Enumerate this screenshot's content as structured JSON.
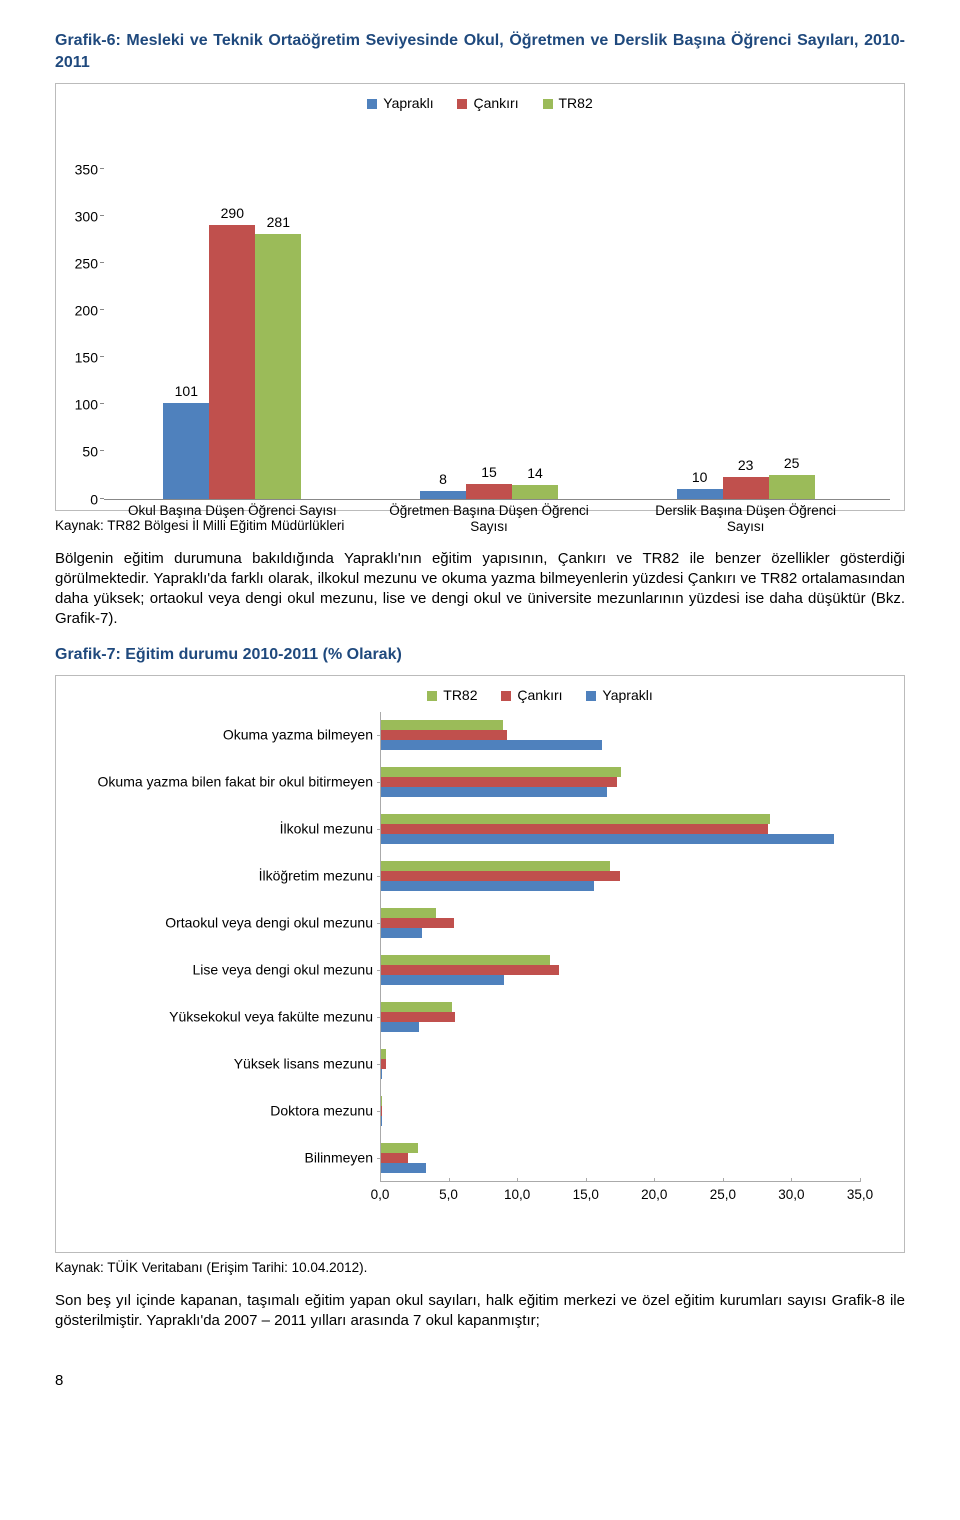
{
  "colors": {
    "blue": "#4f81bd",
    "red": "#c0504d",
    "green": "#9bbb59",
    "title": "#1f497d"
  },
  "chart6": {
    "title": "Grafik-6: Mesleki ve Teknik Ortaöğretim Seviyesinde Okul, Öğretmen ve Derslik Başına Öğrenci Sayıları, 2010-2011",
    "legend": [
      "Yapraklı",
      "Çankırı",
      "TR82"
    ],
    "ymax": 350,
    "yticks": [
      0,
      50,
      100,
      150,
      200,
      250,
      300,
      350
    ],
    "groups": [
      {
        "label": "Okul Başına Düşen Öğrenci Sayısı",
        "values": [
          101,
          290,
          281
        ]
      },
      {
        "label": "Öğretmen Başına Düşen Öğrenci Sayısı",
        "values": [
          8,
          15,
          14
        ]
      },
      {
        "label": "Derslik Başına Düşen Öğrenci Sayısı",
        "values": [
          10,
          23,
          25
        ]
      }
    ],
    "source": "Kaynak: TR82 Bölgesi İl Milli Eğitim Müdürlükleri"
  },
  "para1": "Bölgenin eğitim durumuna bakıldığında Yapraklı'nın eğitim yapısının, Çankırı ve TR82 ile benzer özellikler gösterdiği görülmektedir. Yapraklı'da farklı olarak, ilkokul mezunu ve okuma yazma bilmeyenlerin yüzdesi Çankırı ve TR82 ortalamasından daha yüksek; ortaokul veya dengi okul mezunu, lise ve dengi okul ve üniversite mezunlarının yüzdesi ise daha düşüktür (Bkz. Grafik-7).",
  "chart7": {
    "title": "Grafik-7: Eğitim durumu 2010-2011 (% Olarak)",
    "legend": [
      "TR82",
      "Çankırı",
      "Yapraklı"
    ],
    "xmax": 35,
    "xticks": [
      "0,0",
      "5,0",
      "10,0",
      "15,0",
      "20,0",
      "25,0",
      "30,0",
      "35,0"
    ],
    "categories": [
      {
        "label": "Okuma yazma bilmeyen",
        "values": [
          8.9,
          9.2,
          16.1
        ]
      },
      {
        "label": "Okuma yazma bilen fakat bir okul bitirmeyen",
        "values": [
          17.5,
          17.2,
          16.5
        ]
      },
      {
        "label": "İlkokul mezunu",
        "values": [
          28.4,
          28.2,
          33.0
        ]
      },
      {
        "label": "İlköğretim mezunu",
        "values": [
          16.7,
          17.4,
          15.5
        ]
      },
      {
        "label": "Ortaokul veya dengi okul mezunu",
        "values": [
          4.0,
          5.3,
          3.0
        ]
      },
      {
        "label": "Lise veya dengi okul mezunu",
        "values": [
          12.3,
          13.0,
          9.0
        ]
      },
      {
        "label": "Yüksekokul veya fakülte mezunu",
        "values": [
          5.2,
          5.4,
          2.8
        ]
      },
      {
        "label": "Yüksek lisans mezunu",
        "values": [
          0.4,
          0.4,
          0.1
        ]
      },
      {
        "label": "Doktora mezunu",
        "values": [
          0.1,
          0.1,
          0.05
        ]
      },
      {
        "label": "Bilinmeyen",
        "values": [
          2.7,
          2.0,
          3.3
        ]
      }
    ],
    "source": "Kaynak: TÜİK Veritabanı (Erişim Tarihi: 10.04.2012)."
  },
  "para2": "Son beş yıl içinde kapanan, taşımalı eğitim yapan okul sayıları, halk eğitim merkezi ve özel eğitim kurumları sayısı Grafik-8 ile gösterilmiştir. Yapraklı'da 2007 – 2011 yılları arasında 7 okul kapanmıştır;",
  "page_number": "8"
}
